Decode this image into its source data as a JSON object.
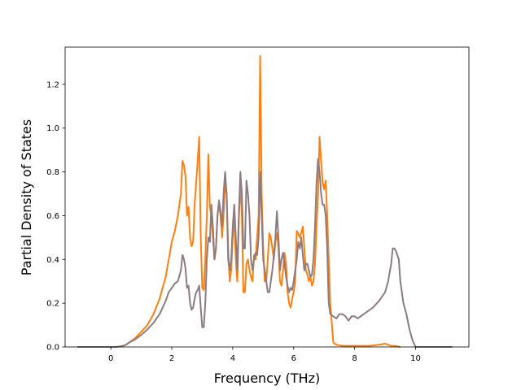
{
  "chart_data": {
    "type": "line",
    "xlabel": "Frequency (THz)",
    "ylabel": "Partial Density of States",
    "xlim": [
      -1.5,
      11.75
    ],
    "ylim": [
      0,
      1.37
    ],
    "xticks": [
      0,
      2,
      4,
      6,
      8,
      10
    ],
    "yticks": [
      0.0,
      0.2,
      0.4,
      0.6,
      0.8,
      1.0,
      1.2
    ],
    "ytick_labels": [
      "0.0",
      "0.2",
      "0.4",
      "0.6",
      "0.8",
      "1.0",
      "1.2"
    ],
    "grid": false,
    "legend": false,
    "series": [
      {
        "color": "#ff7f0e",
        "points": [
          [
            -1.1,
            0
          ],
          [
            0.2,
            0
          ],
          [
            0.4,
            0.005
          ],
          [
            0.5,
            0.01
          ],
          [
            0.6,
            0.02
          ],
          [
            0.8,
            0.04
          ],
          [
            1.0,
            0.07
          ],
          [
            1.2,
            0.1
          ],
          [
            1.4,
            0.15
          ],
          [
            1.6,
            0.22
          ],
          [
            1.7,
            0.27
          ],
          [
            1.8,
            0.32
          ],
          [
            1.9,
            0.4
          ],
          [
            2.0,
            0.48
          ],
          [
            2.1,
            0.53
          ],
          [
            2.2,
            0.6
          ],
          [
            2.3,
            0.7
          ],
          [
            2.35,
            0.85
          ],
          [
            2.4,
            0.83
          ],
          [
            2.45,
            0.78
          ],
          [
            2.5,
            0.6
          ],
          [
            2.55,
            0.64
          ],
          [
            2.6,
            0.5
          ],
          [
            2.65,
            0.46
          ],
          [
            2.7,
            0.48
          ],
          [
            2.75,
            0.65
          ],
          [
            2.8,
            0.75
          ],
          [
            2.85,
            0.85
          ],
          [
            2.9,
            0.96
          ],
          [
            2.95,
            0.5
          ],
          [
            3.0,
            0.27
          ],
          [
            3.05,
            0.26
          ],
          [
            3.1,
            0.4
          ],
          [
            3.15,
            0.6
          ],
          [
            3.2,
            0.88
          ],
          [
            3.25,
            0.64
          ],
          [
            3.3,
            0.6
          ],
          [
            3.35,
            0.5
          ],
          [
            3.4,
            0.4
          ],
          [
            3.45,
            0.45
          ],
          [
            3.5,
            0.6
          ],
          [
            3.55,
            0.65
          ],
          [
            3.6,
            0.6
          ],
          [
            3.65,
            0.5
          ],
          [
            3.7,
            0.6
          ],
          [
            3.75,
            0.75
          ],
          [
            3.8,
            0.7
          ],
          [
            3.85,
            0.45
          ],
          [
            3.9,
            0.3
          ],
          [
            3.95,
            0.35
          ],
          [
            4.0,
            0.5
          ],
          [
            4.05,
            0.6
          ],
          [
            4.1,
            0.4
          ],
          [
            4.15,
            0.3
          ],
          [
            4.2,
            0.58
          ],
          [
            4.25,
            0.75
          ],
          [
            4.3,
            0.6
          ],
          [
            4.35,
            0.25
          ],
          [
            4.4,
            0.25
          ],
          [
            4.45,
            0.38
          ],
          [
            4.5,
            0.4
          ],
          [
            4.55,
            0.35
          ],
          [
            4.6,
            0.32
          ],
          [
            4.65,
            0.3
          ],
          [
            4.7,
            0.42
          ],
          [
            4.75,
            0.4
          ],
          [
            4.8,
            0.5
          ],
          [
            4.85,
            0.6
          ],
          [
            4.9,
            1.33
          ],
          [
            4.95,
            0.7
          ],
          [
            5.0,
            0.45
          ],
          [
            5.05,
            0.3
          ],
          [
            5.1,
            0.3
          ],
          [
            5.15,
            0.4
          ],
          [
            5.2,
            0.52
          ],
          [
            5.25,
            0.5
          ],
          [
            5.3,
            0.45
          ],
          [
            5.35,
            0.4
          ],
          [
            5.4,
            0.48
          ],
          [
            5.45,
            0.52
          ],
          [
            5.5,
            0.45
          ],
          [
            5.55,
            0.3
          ],
          [
            5.6,
            0.28
          ],
          [
            5.65,
            0.35
          ],
          [
            5.7,
            0.43
          ],
          [
            5.75,
            0.38
          ],
          [
            5.8,
            0.25
          ],
          [
            5.85,
            0.2
          ],
          [
            5.9,
            0.18
          ],
          [
            5.95,
            0.22
          ],
          [
            6.0,
            0.25
          ],
          [
            6.05,
            0.3
          ],
          [
            6.1,
            0.53
          ],
          [
            6.15,
            0.52
          ],
          [
            6.2,
            0.5
          ],
          [
            6.25,
            0.52
          ],
          [
            6.3,
            0.55
          ],
          [
            6.35,
            0.45
          ],
          [
            6.4,
            0.35
          ],
          [
            6.45,
            0.33
          ],
          [
            6.5,
            0.3
          ],
          [
            6.55,
            0.32
          ],
          [
            6.6,
            0.28
          ],
          [
            6.65,
            0.3
          ],
          [
            6.7,
            0.38
          ],
          [
            6.75,
            0.55
          ],
          [
            6.8,
            0.7
          ],
          [
            6.85,
            0.96
          ],
          [
            6.9,
            0.85
          ],
          [
            6.95,
            0.75
          ],
          [
            7.0,
            0.72
          ],
          [
            7.05,
            0.76
          ],
          [
            7.1,
            0.6
          ],
          [
            7.15,
            0.4
          ],
          [
            7.2,
            0.2
          ],
          [
            7.3,
            0.02
          ],
          [
            7.4,
            0.01
          ],
          [
            7.6,
            0.005
          ],
          [
            8.0,
            0.005
          ],
          [
            8.5,
            0.005
          ],
          [
            8.8,
            0.01
          ],
          [
            9.0,
            0.015
          ],
          [
            9.1,
            0.01
          ],
          [
            9.2,
            0.005
          ],
          [
            9.3,
            0.005
          ],
          [
            9.5,
            0
          ]
        ]
      },
      {
        "color": "#8c7c82",
        "points": [
          [
            -1.1,
            0
          ],
          [
            0.2,
            0
          ],
          [
            0.4,
            0.005
          ],
          [
            0.5,
            0.01
          ],
          [
            0.6,
            0.02
          ],
          [
            0.8,
            0.035
          ],
          [
            1.0,
            0.055
          ],
          [
            1.2,
            0.08
          ],
          [
            1.4,
            0.11
          ],
          [
            1.6,
            0.15
          ],
          [
            1.7,
            0.18
          ],
          [
            1.8,
            0.21
          ],
          [
            1.9,
            0.25
          ],
          [
            2.0,
            0.27
          ],
          [
            2.1,
            0.29
          ],
          [
            2.2,
            0.3
          ],
          [
            2.3,
            0.35
          ],
          [
            2.35,
            0.42
          ],
          [
            2.4,
            0.4
          ],
          [
            2.45,
            0.36
          ],
          [
            2.5,
            0.27
          ],
          [
            2.55,
            0.28
          ],
          [
            2.6,
            0.2
          ],
          [
            2.65,
            0.17
          ],
          [
            2.7,
            0.18
          ],
          [
            2.75,
            0.22
          ],
          [
            2.8,
            0.25
          ],
          [
            2.85,
            0.26
          ],
          [
            2.9,
            0.28
          ],
          [
            2.95,
            0.18
          ],
          [
            3.0,
            0.09
          ],
          [
            3.05,
            0.09
          ],
          [
            3.1,
            0.2
          ],
          [
            3.15,
            0.4
          ],
          [
            3.2,
            0.5
          ],
          [
            3.25,
            0.48
          ],
          [
            3.3,
            0.65
          ],
          [
            3.35,
            0.55
          ],
          [
            3.4,
            0.4
          ],
          [
            3.45,
            0.45
          ],
          [
            3.5,
            0.6
          ],
          [
            3.55,
            0.67
          ],
          [
            3.6,
            0.62
          ],
          [
            3.65,
            0.55
          ],
          [
            3.7,
            0.7
          ],
          [
            3.75,
            0.8
          ],
          [
            3.8,
            0.7
          ],
          [
            3.85,
            0.4
          ],
          [
            3.9,
            0.35
          ],
          [
            3.95,
            0.4
          ],
          [
            4.0,
            0.55
          ],
          [
            4.05,
            0.65
          ],
          [
            4.1,
            0.5
          ],
          [
            4.15,
            0.35
          ],
          [
            4.2,
            0.6
          ],
          [
            4.25,
            0.8
          ],
          [
            4.3,
            0.7
          ],
          [
            4.35,
            0.45
          ],
          [
            4.4,
            0.45
          ],
          [
            4.45,
            0.76
          ],
          [
            4.5,
            0.7
          ],
          [
            4.55,
            0.6
          ],
          [
            4.6,
            0.4
          ],
          [
            4.65,
            0.35
          ],
          [
            4.7,
            0.4
          ],
          [
            4.75,
            0.43
          ],
          [
            4.8,
            0.42
          ],
          [
            4.85,
            0.5
          ],
          [
            4.9,
            0.8
          ],
          [
            4.95,
            0.6
          ],
          [
            5.0,
            0.4
          ],
          [
            5.05,
            0.35
          ],
          [
            5.1,
            0.3
          ],
          [
            5.15,
            0.25
          ],
          [
            5.2,
            0.25
          ],
          [
            5.25,
            0.3
          ],
          [
            5.3,
            0.35
          ],
          [
            5.35,
            0.42
          ],
          [
            5.4,
            0.5
          ],
          [
            5.45,
            0.62
          ],
          [
            5.5,
            0.5
          ],
          [
            5.55,
            0.35
          ],
          [
            5.6,
            0.4
          ],
          [
            5.65,
            0.43
          ],
          [
            5.7,
            0.38
          ],
          [
            5.75,
            0.32
          ],
          [
            5.8,
            0.28
          ],
          [
            5.85,
            0.25
          ],
          [
            5.9,
            0.27
          ],
          [
            5.95,
            0.26
          ],
          [
            6.0,
            0.3
          ],
          [
            6.05,
            0.35
          ],
          [
            6.1,
            0.4
          ],
          [
            6.15,
            0.48
          ],
          [
            6.2,
            0.45
          ],
          [
            6.25,
            0.5
          ],
          [
            6.3,
            0.42
          ],
          [
            6.35,
            0.35
          ],
          [
            6.4,
            0.38
          ],
          [
            6.45,
            0.38
          ],
          [
            6.5,
            0.35
          ],
          [
            6.55,
            0.32
          ],
          [
            6.6,
            0.33
          ],
          [
            6.65,
            0.4
          ],
          [
            6.7,
            0.55
          ],
          [
            6.75,
            0.75
          ],
          [
            6.8,
            0.86
          ],
          [
            6.85,
            0.8
          ],
          [
            6.9,
            0.7
          ],
          [
            6.95,
            0.65
          ],
          [
            7.0,
            0.65
          ],
          [
            7.05,
            0.6
          ],
          [
            7.1,
            0.45
          ],
          [
            7.15,
            0.2
          ],
          [
            7.2,
            0.15
          ],
          [
            7.3,
            0.14
          ],
          [
            7.4,
            0.13
          ],
          [
            7.5,
            0.15
          ],
          [
            7.6,
            0.15
          ],
          [
            7.7,
            0.14
          ],
          [
            7.8,
            0.12
          ],
          [
            7.9,
            0.14
          ],
          [
            8.0,
            0.14
          ],
          [
            8.1,
            0.13
          ],
          [
            8.2,
            0.14
          ],
          [
            8.4,
            0.16
          ],
          [
            8.6,
            0.18
          ],
          [
            8.8,
            0.21
          ],
          [
            9.0,
            0.25
          ],
          [
            9.1,
            0.3
          ],
          [
            9.2,
            0.38
          ],
          [
            9.25,
            0.45
          ],
          [
            9.3,
            0.45
          ],
          [
            9.35,
            0.44
          ],
          [
            9.4,
            0.42
          ],
          [
            9.45,
            0.4
          ],
          [
            9.5,
            0.3
          ],
          [
            9.6,
            0.2
          ],
          [
            9.7,
            0.15
          ],
          [
            9.8,
            0.08
          ],
          [
            9.9,
            0.03
          ],
          [
            10.0,
            0
          ],
          [
            10.5,
            0
          ],
          [
            11.2,
            0
          ]
        ]
      }
    ]
  }
}
